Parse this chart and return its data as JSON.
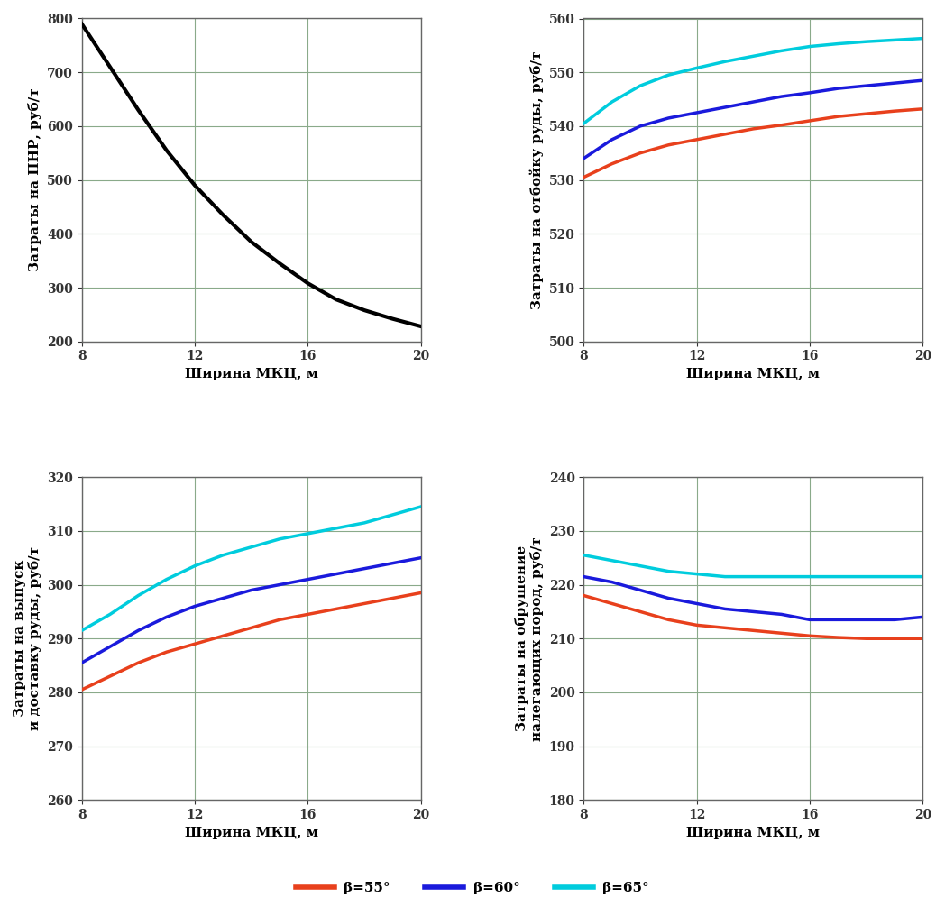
{
  "x": [
    8,
    9,
    10,
    11,
    12,
    13,
    14,
    15,
    16,
    17,
    18,
    19,
    20
  ],
  "subplot_a": {
    "ylabel": "Затраты на ПНР, руб/т",
    "xlabel": "Ширина МКЦ, м",
    "ylim": [
      200,
      800
    ],
    "yticks": [
      200,
      300,
      400,
      500,
      600,
      700,
      800
    ],
    "xlim": [
      8,
      20
    ],
    "xticks": [
      8,
      12,
      16,
      20
    ],
    "curve": [
      790,
      710,
      630,
      555,
      490,
      435,
      385,
      345,
      308,
      278,
      258,
      242,
      228
    ]
  },
  "subplot_b": {
    "ylabel": "Затраты на отбойку руды, руб/т",
    "xlabel": "Ширина МКЦ, м",
    "ylim": [
      500,
      560
    ],
    "yticks": [
      500,
      510,
      520,
      530,
      540,
      550,
      560
    ],
    "xlim": [
      8,
      20
    ],
    "xticks": [
      8,
      12,
      16,
      20
    ],
    "curve_55": [
      530.5,
      533.0,
      535.0,
      536.5,
      537.5,
      538.5,
      539.5,
      540.2,
      541.0,
      541.8,
      542.3,
      542.8,
      543.2
    ],
    "curve_60": [
      534.0,
      537.5,
      540.0,
      541.5,
      542.5,
      543.5,
      544.5,
      545.5,
      546.2,
      547.0,
      547.5,
      548.0,
      548.5
    ],
    "curve_65": [
      540.5,
      544.5,
      547.5,
      549.5,
      550.8,
      552.0,
      553.0,
      554.0,
      554.8,
      555.3,
      555.7,
      556.0,
      556.3
    ]
  },
  "subplot_c": {
    "ylabel": "Затраты на выпуск\nи доставку руды, руб/т",
    "xlabel": "Ширина МКЦ, м",
    "ylim": [
      260,
      320
    ],
    "yticks": [
      260,
      270,
      280,
      290,
      300,
      310,
      320
    ],
    "xlim": [
      8,
      20
    ],
    "xticks": [
      8,
      12,
      16,
      20
    ],
    "curve_55": [
      280.5,
      283.0,
      285.5,
      287.5,
      289.0,
      290.5,
      292.0,
      293.5,
      294.5,
      295.5,
      296.5,
      297.5,
      298.5
    ],
    "curve_60": [
      285.5,
      288.5,
      291.5,
      294.0,
      296.0,
      297.5,
      299.0,
      300.0,
      301.0,
      302.0,
      303.0,
      304.0,
      305.0
    ],
    "curve_65": [
      291.5,
      294.5,
      298.0,
      301.0,
      303.5,
      305.5,
      307.0,
      308.5,
      309.5,
      310.5,
      311.5,
      313.0,
      314.5
    ]
  },
  "subplot_d": {
    "ylabel": "Затраты на обрушение\nналегающих пород, руб/т",
    "xlabel": "Ширина МКЦ, м",
    "ylim": [
      180,
      240
    ],
    "yticks": [
      180,
      190,
      200,
      210,
      220,
      230,
      240
    ],
    "xlim": [
      8,
      20
    ],
    "xticks": [
      8,
      12,
      16,
      20
    ],
    "curve_55": [
      218.0,
      216.5,
      215.0,
      213.5,
      212.5,
      212.0,
      211.5,
      211.0,
      210.5,
      210.2,
      210.0,
      210.0,
      210.0
    ],
    "curve_60": [
      221.5,
      220.5,
      219.0,
      217.5,
      216.5,
      215.5,
      215.0,
      214.5,
      213.5,
      213.5,
      213.5,
      213.5,
      214.0
    ],
    "curve_65": [
      225.5,
      224.5,
      223.5,
      222.5,
      222.0,
      221.5,
      221.5,
      221.5,
      221.5,
      221.5,
      221.5,
      221.5,
      221.5
    ]
  },
  "colors": {
    "55": "#e8401c",
    "60": "#1a1adc",
    "65": "#00ccdd"
  },
  "legend_labels": [
    "β=55°",
    "β=60°",
    "β=65°"
  ],
  "linewidth": 2.5,
  "grid_color": "#8aaa8a",
  "spine_color": "#666666",
  "tick_color": "#333333",
  "font_size_label": 11,
  "font_size_tick": 10,
  "font_size_legend": 11
}
